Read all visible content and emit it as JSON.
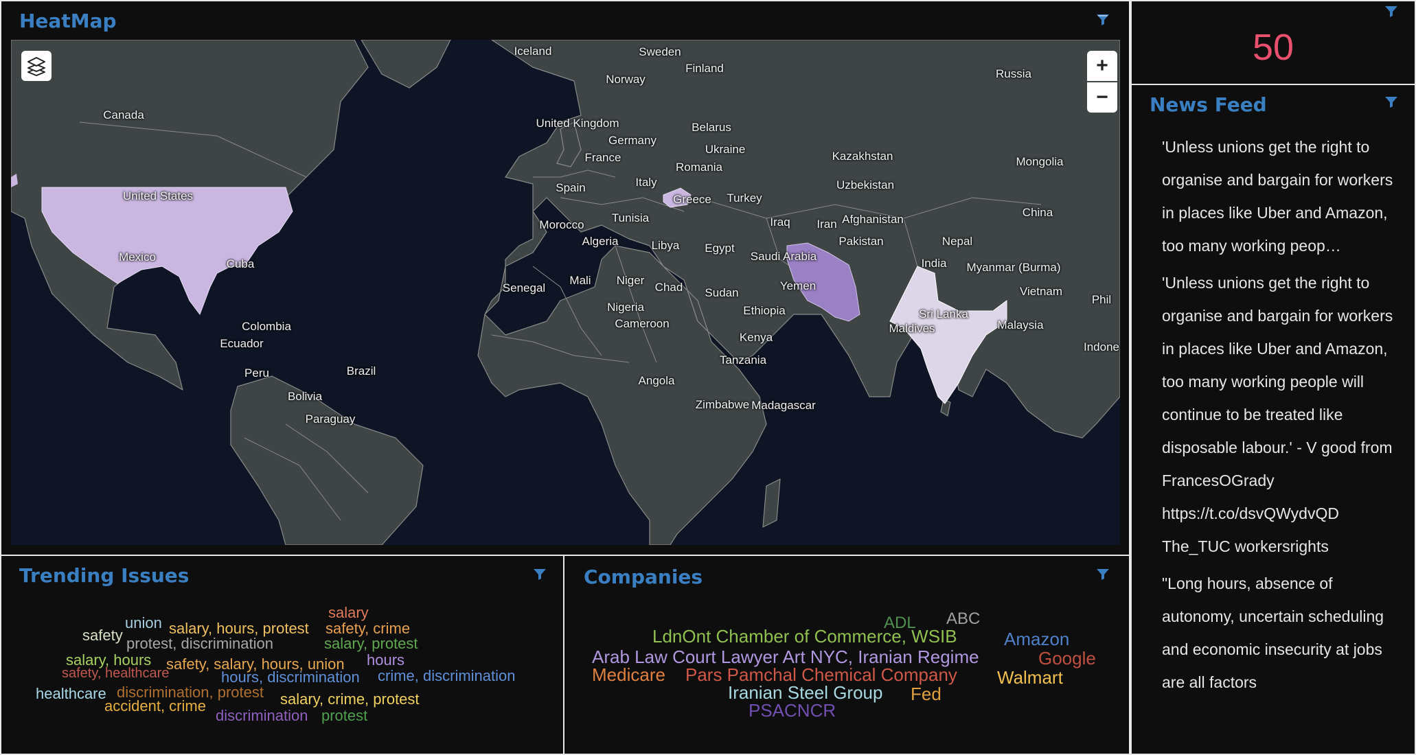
{
  "heatmap": {
    "title": "HeatMap",
    "zoom_in": "+",
    "zoom_out": "−",
    "colors": {
      "ocean": "#0f1524",
      "land": "#3f4444",
      "border": "#8a8a8a",
      "low": "#c9b7e1",
      "high": "#9a80c4"
    },
    "labels": [
      {
        "text": "Iceland"
      },
      {
        "text": "Sweden"
      },
      {
        "text": "Finland"
      },
      {
        "text": "Norway"
      },
      {
        "text": "Russia"
      },
      {
        "text": "Canada"
      },
      {
        "text": "United Kingdom"
      },
      {
        "text": "Belarus"
      },
      {
        "text": "Germany"
      },
      {
        "text": "Ukraine"
      },
      {
        "text": "France"
      },
      {
        "text": "Kazakhstan"
      },
      {
        "text": "Mongolia"
      },
      {
        "text": "Romania"
      },
      {
        "text": "United States"
      },
      {
        "text": "Italy"
      },
      {
        "text": "Uzbekistan"
      },
      {
        "text": "Spain"
      },
      {
        "text": "Greece"
      },
      {
        "text": "Turkey"
      },
      {
        "text": "Afghanistan"
      },
      {
        "text": "Tunisia"
      },
      {
        "text": "China"
      },
      {
        "text": "Iraq"
      },
      {
        "text": "Iran"
      },
      {
        "text": "Morocco"
      },
      {
        "text": "Pakistan"
      },
      {
        "text": "Nepal"
      },
      {
        "text": "Algeria"
      },
      {
        "text": "Libya"
      },
      {
        "text": "Egypt"
      },
      {
        "text": "Mexico"
      },
      {
        "text": "Saudi Arabia"
      },
      {
        "text": "India"
      },
      {
        "text": "Cuba"
      },
      {
        "text": "Myanmar (Burma)"
      },
      {
        "text": "Mali"
      },
      {
        "text": "Niger"
      },
      {
        "text": "Senegal"
      },
      {
        "text": "Chad"
      },
      {
        "text": "Yemen"
      },
      {
        "text": "Sudan"
      },
      {
        "text": "Vietnam"
      },
      {
        "text": "Phil"
      },
      {
        "text": "Nigeria"
      },
      {
        "text": "Ethiopia"
      },
      {
        "text": "Sri Lanka"
      },
      {
        "text": "Colombia"
      },
      {
        "text": "Cameroon"
      },
      {
        "text": "Maldives"
      },
      {
        "text": "Malaysia"
      },
      {
        "text": "Kenya"
      },
      {
        "text": "Ecuador"
      },
      {
        "text": "Indone"
      },
      {
        "text": "Tanzania"
      },
      {
        "text": "Brazil"
      },
      {
        "text": "Peru"
      },
      {
        "text": "Angola"
      },
      {
        "text": "Bolivia"
      },
      {
        "text": "Zimbabwe"
      },
      {
        "text": "Madagascar"
      },
      {
        "text": "Paraguay"
      }
    ]
  },
  "counter": {
    "value": "50",
    "color": "#e8506e"
  },
  "news_feed": {
    "title": "News Feed",
    "items": [
      "'Unless unions get the right to organise and bargain for workers in places like Uber and Amazon, too many working peop…",
      "'Unless unions get the right to organise and bargain for workers in places like Uber and Amazon, too many working people will continue to be treated like disposable labour.' - V good from FrancesOGrady https://t.co/dsvQWydvQD The_TUC workersrights",
      "\"Long hours, absence of autonomy, uncertain scheduling and economic insecurity at jobs are all factors"
    ]
  },
  "trending": {
    "title": "Trending Issues",
    "words": [
      {
        "text": "salary",
        "color": "#e07a5a"
      },
      {
        "text": "union",
        "color": "#a8d0e0"
      },
      {
        "text": "safety",
        "color": "#d8e0c8"
      },
      {
        "text": "salary, hours, protest",
        "color": "#f0c060"
      },
      {
        "text": "safety, crime",
        "color": "#e8a050"
      },
      {
        "text": "protest, discrimination",
        "color": "#a8a8a8"
      },
      {
        "text": "salary, protest",
        "color": "#60a850"
      },
      {
        "text": "salary, hours",
        "color": "#a8d060"
      },
      {
        "text": "safety, salary, hours, union",
        "color": "#e8a850"
      },
      {
        "text": "hours",
        "color": "#b090e0"
      },
      {
        "text": "safety, healthcare",
        "color": "#c05850"
      },
      {
        "text": "hours, discrimination",
        "color": "#6090d8"
      },
      {
        "text": "crime, discrimination",
        "color": "#6090d8"
      },
      {
        "text": "healthcare",
        "color": "#a8d8e8"
      },
      {
        "text": "discrimination, protest",
        "color": "#b07030"
      },
      {
        "text": "salary, crime, protest",
        "color": "#f0d060"
      },
      {
        "text": "accident, crime",
        "color": "#e8b040"
      },
      {
        "text": "discrimination",
        "color": "#9060c0"
      },
      {
        "text": "protest",
        "color": "#50a050"
      }
    ]
  },
  "companies": {
    "title": "Companies",
    "words": [
      {
        "text": "ADL",
        "color": "#509050"
      },
      {
        "text": "ABC",
        "color": "#a0a0a0"
      },
      {
        "text": "LdnOnt Chamber of Commerce, WSIB",
        "color": "#90c050"
      },
      {
        "text": "Amazon",
        "color": "#5080c8"
      },
      {
        "text": "Arab Law Court Lawyer Art NYC, Iranian Regime",
        "color": "#b098e0"
      },
      {
        "text": "Google",
        "color": "#c05040"
      },
      {
        "text": "Medicare",
        "color": "#e08040"
      },
      {
        "text": "Pars Pamchal Chemical Company",
        "color": "#d05848"
      },
      {
        "text": "Walmart",
        "color": "#f0c050"
      },
      {
        "text": "Iranian Steel Group",
        "color": "#a8d8e0"
      },
      {
        "text": "Fed",
        "color": "#e0a040"
      },
      {
        "text": "PSACNCR",
        "color": "#7050b0"
      }
    ]
  }
}
